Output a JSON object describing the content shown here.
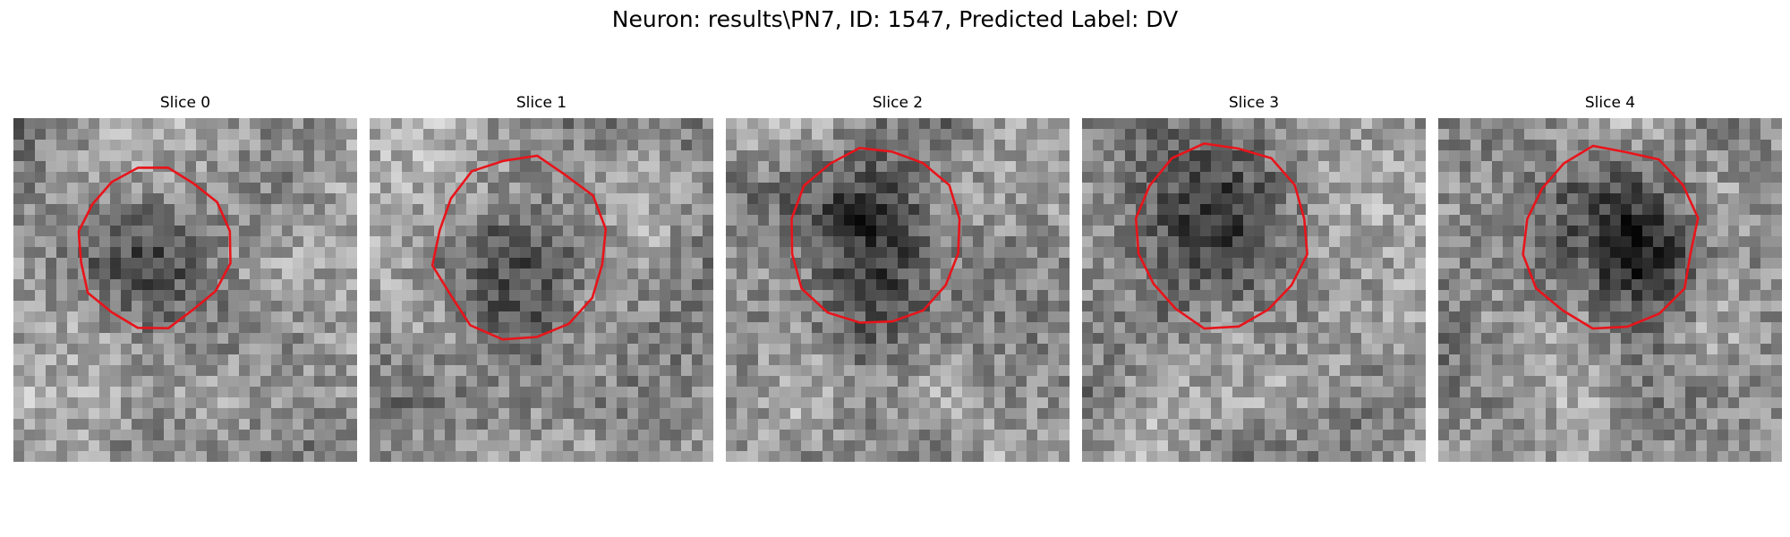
{
  "figure": {
    "title": "Neuron: results\\PN7, ID: 1547, Predicted Label: DV",
    "contour_color": "#e8141b"
  },
  "slices": [
    {
      "title": "Slice 0",
      "seed": 11,
      "cx": 13,
      "cy": 12,
      "r": 7,
      "dark_strength": 0.32
    },
    {
      "title": "Slice 1",
      "seed": 23,
      "cx": 14,
      "cy": 12,
      "r": 8,
      "dark_strength": 0.45
    },
    {
      "title": "Slice 2",
      "seed": 37,
      "cx": 14,
      "cy": 11,
      "r": 8,
      "dark_strength": 0.5
    },
    {
      "title": "Slice 3",
      "seed": 41,
      "cx": 13,
      "cy": 11,
      "r": 8,
      "dark_strength": 0.55
    },
    {
      "title": "Slice 4",
      "seed": 59,
      "cx": 16,
      "cy": 11,
      "r": 8,
      "dark_strength": 0.6
    }
  ]
}
